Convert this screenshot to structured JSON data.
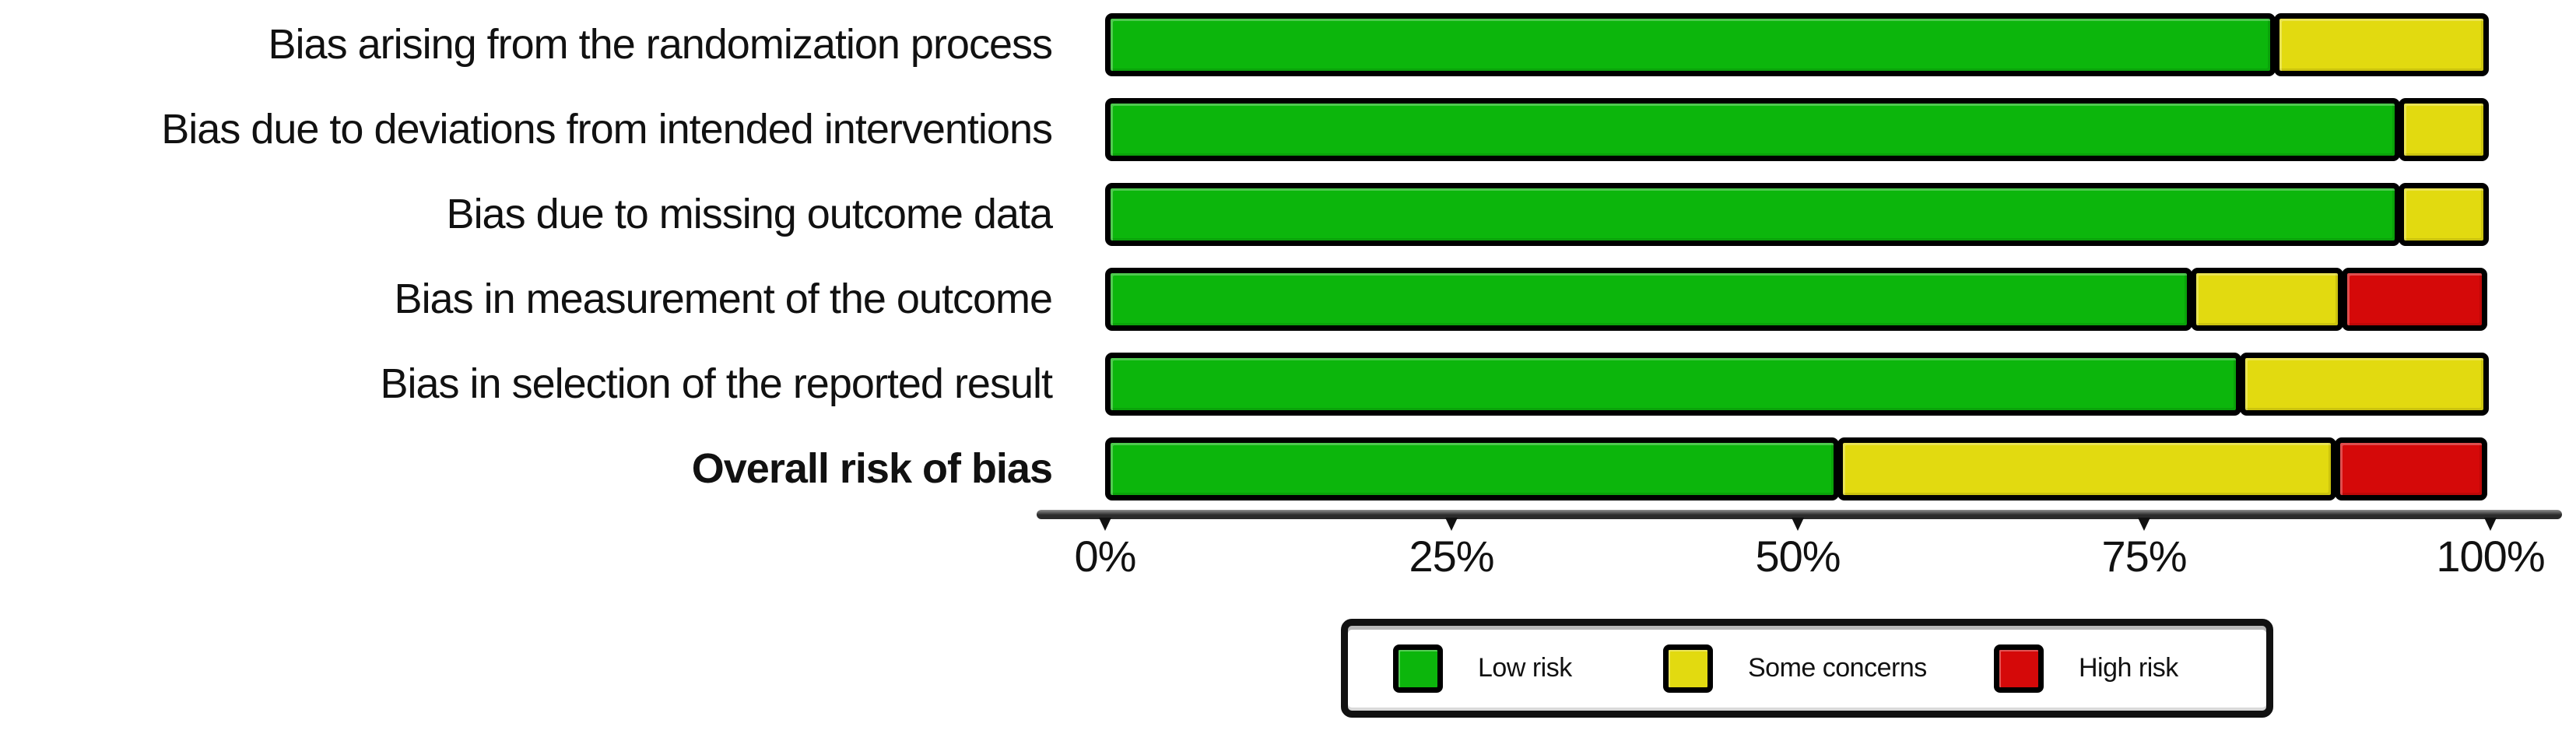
{
  "chart_data": {
    "type": "bar",
    "stacked": true,
    "orientation": "horizontal",
    "title": "",
    "xlabel": "",
    "ylabel": "",
    "xlim": [
      0,
      100
    ],
    "grid": false,
    "categories": [
      "Bias arising from the randomization process",
      "Bias due to deviations from intended interventions",
      "Bias due to missing outcome data",
      "Bias in measurement of the outcome",
      "Bias in selection of the reported result",
      "Overall risk of bias"
    ],
    "bold_categories": [
      "Overall risk of bias"
    ],
    "series": [
      {
        "name": "Low risk",
        "color": "#0cb60c",
        "values": [
          84.5,
          93.5,
          93.5,
          78.5,
          82.0,
          53.0
        ]
      },
      {
        "name": "Some concerns",
        "color": "#e2da10",
        "values": [
          15.5,
          6.5,
          6.5,
          11.0,
          18.0,
          36.0
        ]
      },
      {
        "name": "High risk",
        "color": "#d50909",
        "values": [
          0.0,
          0.0,
          0.0,
          10.5,
          0.0,
          11.0
        ]
      }
    ],
    "x_ticks": [
      {
        "label": "0%",
        "value": 0
      },
      {
        "label": "25%",
        "value": 25
      },
      {
        "label": "50%",
        "value": 50
      },
      {
        "label": "75%",
        "value": 75
      },
      {
        "label": "100%",
        "value": 100
      }
    ],
    "legend": {
      "position": "bottom",
      "items": [
        {
          "label": "Low risk",
          "color": "#0cb60c"
        },
        {
          "label": "Some concerns",
          "color": "#e2da10"
        },
        {
          "label": "High risk",
          "color": "#d50909"
        }
      ]
    }
  }
}
